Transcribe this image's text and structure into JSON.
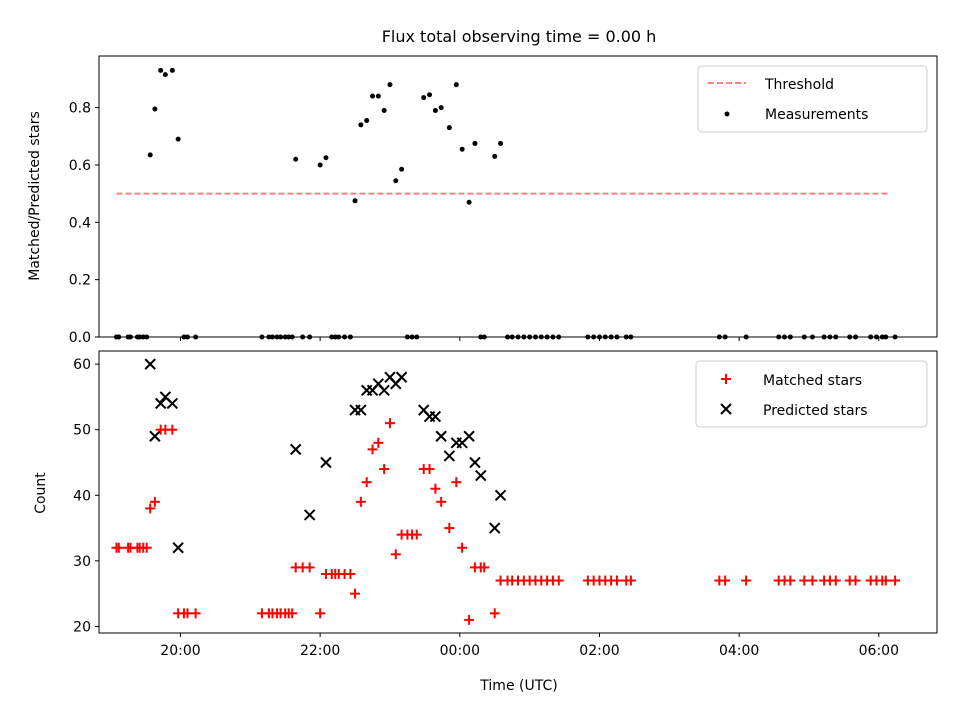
{
  "title": "Flux total observing time = 0.00 h",
  "chart_data": [
    {
      "type": "scatter",
      "ylabel": "Matched/Predicted stars",
      "xlabel": "",
      "xlim": [
        "18:50",
        "06:50"
      ],
      "ylim": [
        0,
        0.98
      ],
      "yticks": [
        "0.0",
        "0.2",
        "0.4",
        "0.6",
        "0.8"
      ],
      "yvalues": [
        0,
        0.2,
        0.4,
        0.6,
        0.8
      ],
      "legend_position": "top-right",
      "threshold": {
        "name": "Threshold",
        "value": 0.5,
        "x_start": "19:05",
        "x_end": "06:10",
        "color": "#ff7f7f"
      },
      "measurements": {
        "name": "Measurements",
        "color": "#000000",
        "points": [
          [
            "19:05",
            0
          ],
          [
            "19:07",
            0
          ],
          [
            "19:15",
            0
          ],
          [
            "19:17",
            0
          ],
          [
            "19:23",
            0
          ],
          [
            "19:25",
            0
          ],
          [
            "19:28",
            0
          ],
          [
            "19:31",
            0
          ],
          [
            "19:34",
            0.635
          ],
          [
            "19:38",
            0.795
          ],
          [
            "19:43",
            0.93
          ],
          [
            "19:47",
            0.915
          ],
          [
            "19:53",
            0.93
          ],
          [
            "19:58",
            0.69
          ],
          [
            "20:03",
            0
          ],
          [
            "20:06",
            0
          ],
          [
            "20:13",
            0
          ],
          [
            "21:10",
            0
          ],
          [
            "21:16",
            0
          ],
          [
            "21:19",
            0
          ],
          [
            "21:23",
            0
          ],
          [
            "21:26",
            0
          ],
          [
            "21:30",
            0
          ],
          [
            "21:33",
            0
          ],
          [
            "21:36",
            0
          ],
          [
            "21:39",
            0.62
          ],
          [
            "21:45",
            0
          ],
          [
            "21:51",
            0
          ],
          [
            "22:00",
            0.6
          ],
          [
            "22:05",
            0.625
          ],
          [
            "22:10",
            0
          ],
          [
            "22:13",
            0
          ],
          [
            "22:16",
            0
          ],
          [
            "22:21",
            0
          ],
          [
            "22:26",
            0
          ],
          [
            "22:30",
            0.475
          ],
          [
            "22:35",
            0.74
          ],
          [
            "22:40",
            0.755
          ],
          [
            "22:45",
            0.84
          ],
          [
            "22:50",
            0.84
          ],
          [
            "22:55",
            0.79
          ],
          [
            "23:00",
            0.88
          ],
          [
            "23:05",
            0.545
          ],
          [
            "23:10",
            0.585
          ],
          [
            "23:15",
            0
          ],
          [
            "23:19",
            0
          ],
          [
            "23:23",
            0
          ],
          [
            "23:29",
            0.835
          ],
          [
            "23:34",
            0.845
          ],
          [
            "23:39",
            0.79
          ],
          [
            "23:44",
            0.8
          ],
          [
            "23:51",
            0.73
          ],
          [
            "23:57",
            0.88
          ],
          [
            "00:02",
            0.655
          ],
          [
            "00:08",
            0.47
          ],
          [
            "00:13",
            0.675
          ],
          [
            "00:18",
            0
          ],
          [
            "00:21",
            0
          ],
          [
            "00:30",
            0.63
          ],
          [
            "00:35",
            0.675
          ],
          [
            "00:41",
            0
          ],
          [
            "00:45",
            0
          ],
          [
            "00:50",
            0
          ],
          [
            "00:55",
            0
          ],
          [
            "01:00",
            0
          ],
          [
            "01:05",
            0
          ],
          [
            "01:10",
            0
          ],
          [
            "01:15",
            0
          ],
          [
            "01:20",
            0
          ],
          [
            "01:25",
            0
          ],
          [
            "01:50",
            0
          ],
          [
            "01:55",
            0
          ],
          [
            "02:00",
            0
          ],
          [
            "02:05",
            0
          ],
          [
            "02:10",
            0
          ],
          [
            "02:15",
            0
          ],
          [
            "02:23",
            0
          ],
          [
            "02:27",
            0
          ],
          [
            "03:43",
            0
          ],
          [
            "03:48",
            0
          ],
          [
            "04:06",
            0
          ],
          [
            "04:34",
            0
          ],
          [
            "04:39",
            0
          ],
          [
            "04:44",
            0
          ],
          [
            "04:56",
            0
          ],
          [
            "05:03",
            0
          ],
          [
            "05:13",
            0
          ],
          [
            "05:18",
            0
          ],
          [
            "05:23",
            0
          ],
          [
            "05:35",
            0
          ],
          [
            "05:40",
            0
          ],
          [
            "05:53",
            0
          ],
          [
            "05:58",
            0
          ],
          [
            "06:03",
            0
          ],
          [
            "06:06",
            0
          ],
          [
            "06:14",
            0
          ]
        ]
      }
    },
    {
      "type": "scatter",
      "ylabel": "Count",
      "xlabel": "Time (UTC)",
      "xlim": [
        "18:50",
        "06:50"
      ],
      "ylim": [
        19,
        62
      ],
      "yticks": [
        "20",
        "30",
        "40",
        "50",
        "60"
      ],
      "yvalues": [
        20,
        30,
        40,
        50,
        60
      ],
      "xticks": [
        "20:00",
        "22:00",
        "00:00",
        "02:00",
        "04:00",
        "06:00"
      ],
      "xtick_times": [
        "20:00",
        "22:00",
        "00:00",
        "02:00",
        "04:00",
        "06:00"
      ],
      "legend_position": "top-right",
      "series": [
        {
          "name": "Matched stars",
          "marker": "+",
          "color": "#ff0000",
          "points": [
            [
              "19:05",
              32
            ],
            [
              "19:07",
              32
            ],
            [
              "19:15",
              32
            ],
            [
              "19:17",
              32
            ],
            [
              "19:23",
              32
            ],
            [
              "19:25",
              32
            ],
            [
              "19:28",
              32
            ],
            [
              "19:31",
              32
            ],
            [
              "19:34",
              38
            ],
            [
              "19:38",
              39
            ],
            [
              "19:43",
              50
            ],
            [
              "19:47",
              50
            ],
            [
              "19:53",
              50
            ],
            [
              "19:58",
              22
            ],
            [
              "20:03",
              22
            ],
            [
              "20:06",
              22
            ],
            [
              "20:13",
              22
            ],
            [
              "21:10",
              22
            ],
            [
              "21:16",
              22
            ],
            [
              "21:19",
              22
            ],
            [
              "21:23",
              22
            ],
            [
              "21:26",
              22
            ],
            [
              "21:30",
              22
            ],
            [
              "21:33",
              22
            ],
            [
              "21:36",
              22
            ],
            [
              "21:39",
              29
            ],
            [
              "21:45",
              29
            ],
            [
              "21:51",
              29
            ],
            [
              "22:00",
              22
            ],
            [
              "22:05",
              28
            ],
            [
              "22:10",
              28
            ],
            [
              "22:13",
              28
            ],
            [
              "22:16",
              28
            ],
            [
              "22:21",
              28
            ],
            [
              "22:26",
              28
            ],
            [
              "22:30",
              25
            ],
            [
              "22:35",
              39
            ],
            [
              "22:40",
              42
            ],
            [
              "22:45",
              47
            ],
            [
              "22:50",
              48
            ],
            [
              "22:55",
              44
            ],
            [
              "23:00",
              51
            ],
            [
              "23:05",
              31
            ],
            [
              "23:10",
              34
            ],
            [
              "23:15",
              34
            ],
            [
              "23:19",
              34
            ],
            [
              "23:23",
              34
            ],
            [
              "23:29",
              44
            ],
            [
              "23:34",
              44
            ],
            [
              "23:39",
              41
            ],
            [
              "23:44",
              39
            ],
            [
              "23:51",
              35
            ],
            [
              "23:57",
              42
            ],
            [
              "00:02",
              32
            ],
            [
              "00:08",
              21
            ],
            [
              "00:13",
              29
            ],
            [
              "00:18",
              29
            ],
            [
              "00:21",
              29
            ],
            [
              "00:30",
              22
            ],
            [
              "00:35",
              27
            ],
            [
              "00:41",
              27
            ],
            [
              "00:45",
              27
            ],
            [
              "00:50",
              27
            ],
            [
              "00:55",
              27
            ],
            [
              "01:00",
              27
            ],
            [
              "01:05",
              27
            ],
            [
              "01:10",
              27
            ],
            [
              "01:15",
              27
            ],
            [
              "01:20",
              27
            ],
            [
              "01:25",
              27
            ],
            [
              "01:50",
              27
            ],
            [
              "01:55",
              27
            ],
            [
              "02:00",
              27
            ],
            [
              "02:05",
              27
            ],
            [
              "02:10",
              27
            ],
            [
              "02:15",
              27
            ],
            [
              "02:23",
              27
            ],
            [
              "02:27",
              27
            ],
            [
              "03:43",
              27
            ],
            [
              "03:48",
              27
            ],
            [
              "04:06",
              27
            ],
            [
              "04:34",
              27
            ],
            [
              "04:39",
              27
            ],
            [
              "04:44",
              27
            ],
            [
              "04:56",
              27
            ],
            [
              "05:03",
              27
            ],
            [
              "05:13",
              27
            ],
            [
              "05:18",
              27
            ],
            [
              "05:23",
              27
            ],
            [
              "05:35",
              27
            ],
            [
              "05:40",
              27
            ],
            [
              "05:53",
              27
            ],
            [
              "05:58",
              27
            ],
            [
              "06:03",
              27
            ],
            [
              "06:06",
              27
            ],
            [
              "06:14",
              27
            ]
          ]
        },
        {
          "name": "Predicted stars",
          "marker": "x",
          "color": "#000000",
          "points": [
            [
              "19:34",
              60
            ],
            [
              "19:38",
              49
            ],
            [
              "19:43",
              54
            ],
            [
              "19:47",
              55
            ],
            [
              "19:53",
              54
            ],
            [
              "19:58",
              32
            ],
            [
              "21:39",
              47
            ],
            [
              "21:51",
              37
            ],
            [
              "22:05",
              45
            ],
            [
              "22:30",
              53
            ],
            [
              "22:35",
              53
            ],
            [
              "22:40",
              56
            ],
            [
              "22:45",
              56
            ],
            [
              "22:50",
              57
            ],
            [
              "22:55",
              56
            ],
            [
              "23:00",
              58
            ],
            [
              "23:05",
              57
            ],
            [
              "23:10",
              58
            ],
            [
              "23:29",
              53
            ],
            [
              "23:34",
              52
            ],
            [
              "23:39",
              52
            ],
            [
              "23:44",
              49
            ],
            [
              "23:51",
              46
            ],
            [
              "23:57",
              48
            ],
            [
              "00:02",
              48
            ],
            [
              "00:08",
              49
            ],
            [
              "00:13",
              45
            ],
            [
              "00:18",
              43
            ],
            [
              "00:30",
              35
            ],
            [
              "00:35",
              40
            ]
          ]
        }
      ]
    }
  ]
}
